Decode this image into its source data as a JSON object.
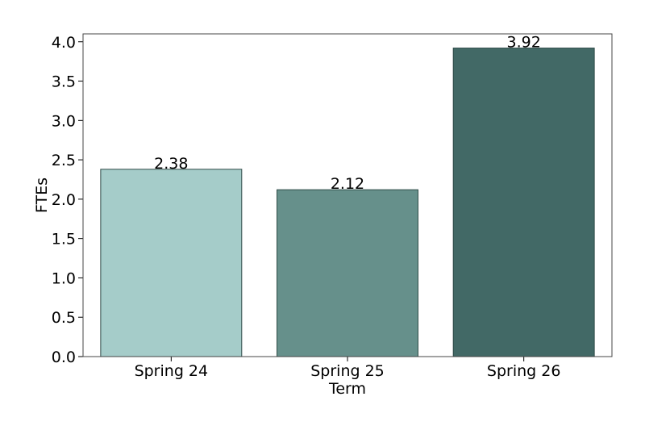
{
  "chart_data": {
    "type": "bar",
    "x_label": "Term",
    "y_label": "FTEs",
    "categories": [
      "Spring 24",
      "Spring 25",
      "Spring 26"
    ],
    "values": [
      2.38,
      2.12,
      3.92
    ],
    "colors": [
      "#a5ccc9",
      "#66908b",
      "#426966"
    ],
    "ylim": [
      0,
      4.1
    ],
    "yticks": [
      {
        "value": 0,
        "label": "0.0"
      },
      {
        "value": 0.5,
        "label": "0.5"
      },
      {
        "value": 1,
        "label": "1.0"
      },
      {
        "value": 1.5,
        "label": "1.5"
      },
      {
        "value": 2,
        "label": "2.0"
      },
      {
        "value": 2.5,
        "label": "2.5"
      },
      {
        "value": 3,
        "label": "3.0"
      },
      {
        "value": 3.5,
        "label": "3.5"
      },
      {
        "value": 4,
        "label": "4.0"
      }
    ],
    "grid": false
  }
}
